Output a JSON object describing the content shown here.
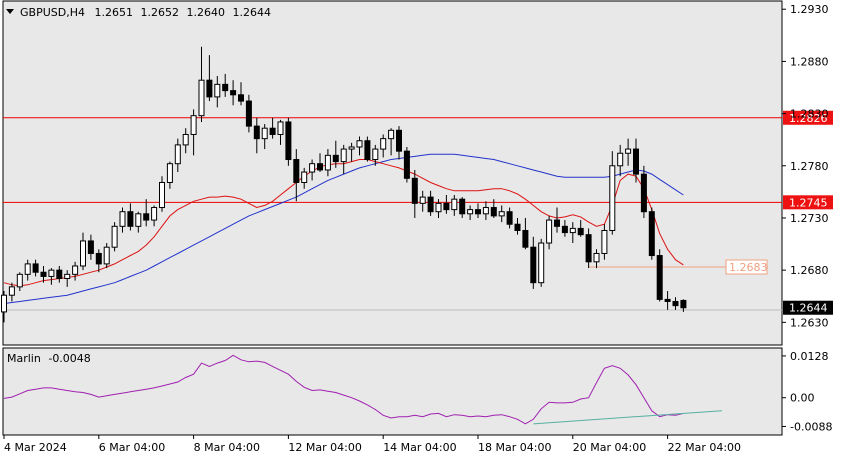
{
  "header": {
    "symbol": "GBPUSD,H4",
    "open": "1.2651",
    "high": "1.2652",
    "low": "1.2640",
    "close": "1.2644"
  },
  "indicator": {
    "name": "Marlin",
    "value": "-0.0048"
  },
  "colors": {
    "bull": "#ffffff",
    "bear": "#000000",
    "ma_fast": "#dd1111",
    "ma_slow": "#2233cc",
    "marlin": "#a020b0",
    "trend": "#55b0a0",
    "level": "#ee0000",
    "level_label": "#ee1111",
    "box_label": "#f0a080",
    "panel_bg": "#e8e8e8"
  },
  "chart_data": [
    {
      "type": "candlestick",
      "title": "GBPUSD,H4",
      "ylim": [
        1.2615,
        1.2935
      ],
      "y_ticks": [
        "1.2930",
        "1.2880",
        "1.2830",
        "1.2780",
        "1.2730",
        "1.2680",
        "1.2630"
      ],
      "x_labels": [
        "4 Mar 2024",
        "6 Mar 04:00",
        "8 Mar 04:00",
        "12 Mar 04:00",
        "14 Mar 04:00",
        "18 Mar 04:00",
        "20 Mar 04:00",
        "22 Mar 04:00"
      ],
      "candles": [
        [
          1.264,
          1.266,
          1.263,
          1.2656
        ],
        [
          1.2656,
          1.2668,
          1.265,
          1.2664
        ],
        [
          1.2664,
          1.2678,
          1.266,
          1.2676
        ],
        [
          1.2676,
          1.269,
          1.267,
          1.2686
        ],
        [
          1.2686,
          1.269,
          1.2674,
          1.2678
        ],
        [
          1.2678,
          1.2684,
          1.2668,
          1.2674
        ],
        [
          1.2674,
          1.2682,
          1.2666,
          1.268
        ],
        [
          1.268,
          1.2684,
          1.2668,
          1.2672
        ],
        [
          1.2672,
          1.268,
          1.2664,
          1.2676
        ],
        [
          1.2676,
          1.2688,
          1.267,
          1.2684
        ],
        [
          1.2684,
          1.2716,
          1.268,
          1.2708
        ],
        [
          1.2708,
          1.2714,
          1.269,
          1.2696
        ],
        [
          1.2696,
          1.27,
          1.2678,
          1.2686
        ],
        [
          1.2686,
          1.2706,
          1.2682,
          1.2702
        ],
        [
          1.2702,
          1.2726,
          1.2698,
          1.2722
        ],
        [
          1.2722,
          1.274,
          1.2716,
          1.2736
        ],
        [
          1.2736,
          1.2744,
          1.2718,
          1.2722
        ],
        [
          1.2722,
          1.2736,
          1.2716,
          1.2734
        ],
        [
          1.2734,
          1.2748,
          1.2722,
          1.2728
        ],
        [
          1.2728,
          1.2742,
          1.2722,
          1.274
        ],
        [
          1.274,
          1.277,
          1.2736,
          1.2764
        ],
        [
          1.2764,
          1.2784,
          1.2758,
          1.2782
        ],
        [
          1.2782,
          1.2806,
          1.2774,
          1.28
        ],
        [
          1.28,
          1.2816,
          1.2792,
          1.281
        ],
        [
          1.281,
          1.2834,
          1.279,
          1.2828
        ],
        [
          1.2828,
          1.2894,
          1.2822,
          1.2862
        ],
        [
          1.2862,
          1.2886,
          1.2842,
          1.2846
        ],
        [
          1.2846,
          1.2866,
          1.2836,
          1.2858
        ],
        [
          1.2858,
          1.2868,
          1.2846,
          1.2852
        ],
        [
          1.2852,
          1.2862,
          1.2838,
          1.2848
        ],
        [
          1.2848,
          1.286,
          1.2838,
          1.2842
        ],
        [
          1.2842,
          1.2848,
          1.2812,
          1.2818
        ],
        [
          1.2818,
          1.2826,
          1.2792,
          1.2806
        ],
        [
          1.2806,
          1.282,
          1.2796,
          1.2816
        ],
        [
          1.2816,
          1.2826,
          1.2806,
          1.281
        ],
        [
          1.281,
          1.2824,
          1.28,
          1.2822
        ],
        [
          1.2822,
          1.2826,
          1.278,
          1.2786
        ],
        [
          1.2786,
          1.2796,
          1.2746,
          1.2764
        ],
        [
          1.2764,
          1.2778,
          1.2758,
          1.2774
        ],
        [
          1.2774,
          1.2786,
          1.2766,
          1.2782
        ],
        [
          1.2782,
          1.2792,
          1.2774,
          1.2776
        ],
        [
          1.2776,
          1.2796,
          1.277,
          1.279
        ],
        [
          1.279,
          1.2804,
          1.2778,
          1.2784
        ],
        [
          1.2784,
          1.28,
          1.2772,
          1.2796
        ],
        [
          1.2796,
          1.2802,
          1.2784,
          1.2798
        ],
        [
          1.2798,
          1.2808,
          1.279,
          1.2804
        ],
        [
          1.2804,
          1.2808,
          1.2784,
          1.2786
        ],
        [
          1.2786,
          1.28,
          1.278,
          1.2796
        ],
        [
          1.2796,
          1.281,
          1.2788,
          1.2806
        ],
        [
          1.2806,
          1.2816,
          1.279,
          1.2814
        ],
        [
          1.2814,
          1.2818,
          1.2786,
          1.2794
        ],
        [
          1.2794,
          1.2798,
          1.2764,
          1.2768
        ],
        [
          1.2768,
          1.2776,
          1.273,
          1.2744
        ],
        [
          1.2744,
          1.2756,
          1.2736,
          1.275
        ],
        [
          1.275,
          1.2756,
          1.2732,
          1.2736
        ],
        [
          1.2736,
          1.2748,
          1.273,
          1.2744
        ],
        [
          1.2744,
          1.2752,
          1.2734,
          1.2738
        ],
        [
          1.2738,
          1.2752,
          1.2732,
          1.2748
        ],
        [
          1.2748,
          1.275,
          1.273,
          1.2734
        ],
        [
          1.2734,
          1.2742,
          1.2728,
          1.2738
        ],
        [
          1.2738,
          1.2744,
          1.273,
          1.2734
        ],
        [
          1.2734,
          1.2746,
          1.2728,
          1.274
        ],
        [
          1.274,
          1.2748,
          1.273,
          1.2732
        ],
        [
          1.2732,
          1.2742,
          1.2726,
          1.2736
        ],
        [
          1.2736,
          1.274,
          1.272,
          1.2724
        ],
        [
          1.2724,
          1.273,
          1.2714,
          1.2718
        ],
        [
          1.2718,
          1.273,
          1.27,
          1.2702
        ],
        [
          1.2702,
          1.2712,
          1.2662,
          1.2668
        ],
        [
          1.2668,
          1.271,
          1.2664,
          1.2706
        ],
        [
          1.2706,
          1.2732,
          1.27,
          1.2728
        ],
        [
          1.2728,
          1.274,
          1.2716,
          1.2722
        ],
        [
          1.2722,
          1.2728,
          1.2712,
          1.2716
        ],
        [
          1.2716,
          1.2726,
          1.2706,
          1.272
        ],
        [
          1.272,
          1.2728,
          1.2712,
          1.2714
        ],
        [
          1.2714,
          1.272,
          1.2682,
          1.2688
        ],
        [
          1.2688,
          1.27,
          1.2682,
          1.2696
        ],
        [
          1.2696,
          1.2724,
          1.269,
          1.2718
        ],
        [
          1.2718,
          1.2794,
          1.2714,
          1.278
        ],
        [
          1.278,
          1.28,
          1.277,
          1.2792
        ],
        [
          1.2792,
          1.2806,
          1.278,
          1.2796
        ],
        [
          1.2796,
          1.2806,
          1.2764,
          1.2772
        ],
        [
          1.2772,
          1.278,
          1.273,
          1.2736
        ],
        [
          1.2736,
          1.274,
          1.269,
          1.2694
        ],
        [
          1.2694,
          1.27,
          1.265,
          1.2652
        ],
        [
          1.2652,
          1.266,
          1.2642,
          1.265
        ],
        [
          1.265,
          1.2654,
          1.2642,
          1.2646
        ],
        [
          1.2651,
          1.2652,
          1.264,
          1.2644
        ]
      ],
      "ma_fast": [
        1.2668,
        1.2666,
        1.2665,
        1.2666,
        1.2668,
        1.267,
        1.2671,
        1.2672,
        1.2673,
        1.2674,
        1.2676,
        1.2678,
        1.268,
        1.2683,
        1.2686,
        1.269,
        1.2694,
        1.2698,
        1.2704,
        1.2712,
        1.2722,
        1.2732,
        1.2738,
        1.2742,
        1.2746,
        1.2748,
        1.275,
        1.275,
        1.2751,
        1.275,
        1.2748,
        1.2744,
        1.274,
        1.2742,
        1.2746,
        1.2752,
        1.2758,
        1.2764,
        1.277,
        1.2775,
        1.2779,
        1.2781,
        1.2782,
        1.2782,
        1.2784,
        1.2786,
        1.2786,
        1.2784,
        1.2782,
        1.278,
        1.2778,
        1.2775,
        1.2772,
        1.2768,
        1.2764,
        1.2761,
        1.2758,
        1.2756,
        1.2756,
        1.2756,
        1.2756,
        1.2757,
        1.2758,
        1.2758,
        1.2756,
        1.2753,
        1.2748,
        1.2742,
        1.2736,
        1.2732,
        1.273,
        1.2731,
        1.2733,
        1.2731,
        1.2726,
        1.2722,
        1.2724,
        1.2742,
        1.2766,
        1.2772,
        1.277,
        1.2758,
        1.2738,
        1.2715,
        1.27,
        1.269,
        1.2685
      ],
      "ma_slow": [
        1.2648,
        1.2649,
        1.265,
        1.2651,
        1.2652,
        1.2653,
        1.2654,
        1.2655,
        1.2656,
        1.2658,
        1.266,
        1.2662,
        1.2664,
        1.2666,
        1.2668,
        1.2671,
        1.2674,
        1.2677,
        1.268,
        1.2684,
        1.2688,
        1.2692,
        1.2696,
        1.27,
        1.2704,
        1.2708,
        1.2712,
        1.2716,
        1.272,
        1.2724,
        1.2728,
        1.2732,
        1.2735,
        1.2738,
        1.2741,
        1.2744,
        1.2747,
        1.275,
        1.2754,
        1.2758,
        1.2762,
        1.2766,
        1.2769,
        1.2772,
        1.2775,
        1.2778,
        1.278,
        1.2782,
        1.2784,
        1.2786,
        1.2787,
        1.2788,
        1.2789,
        1.279,
        1.2791,
        1.2791,
        1.2791,
        1.2791,
        1.279,
        1.2789,
        1.2788,
        1.2787,
        1.2786,
        1.2784,
        1.2782,
        1.278,
        1.2778,
        1.2776,
        1.2774,
        1.2772,
        1.277,
        1.2769,
        1.2769,
        1.2769,
        1.2769,
        1.2769,
        1.2769,
        1.277,
        1.2772,
        1.2774,
        1.2776,
        1.2775,
        1.2772,
        1.2767,
        1.2762,
        1.2757,
        1.2752
      ],
      "levels": [
        {
          "label": "1.2826",
          "value": 1.2826
        },
        {
          "label": "1.2745",
          "value": 1.2745
        }
      ],
      "bid": {
        "label": "1.2644",
        "value": 1.2644
      },
      "target": {
        "label": "1.2683",
        "value": 1.2683
      }
    },
    {
      "type": "line",
      "title": "Marlin -0.0048",
      "ylim": [
        -0.0105,
        0.014
      ],
      "y_ticks": [
        "0.0128",
        "0.00",
        "-0.0088"
      ],
      "series": [
        {
          "values": [
            -0.0002,
            0.0002,
            0.0012,
            0.0022,
            0.0026,
            0.003,
            0.003,
            0.0026,
            0.0022,
            0.0018,
            0.0016,
            0.001,
            0.0002,
            0.0006,
            0.001,
            0.0014,
            0.0018,
            0.0022,
            0.0026,
            0.003,
            0.0036,
            0.0042,
            0.0048,
            0.0062,
            0.0072,
            0.0106,
            0.0096,
            0.0106,
            0.0114,
            0.013,
            0.0116,
            0.011,
            0.0112,
            0.0108,
            0.0096,
            0.0084,
            0.0072,
            0.005,
            0.0032,
            0.0022,
            0.0024,
            0.002,
            0.0016,
            0.0008,
            0.0,
            -0.001,
            -0.0022,
            -0.0036,
            -0.0054,
            -0.0062,
            -0.0058,
            -0.0058,
            -0.0054,
            -0.0058,
            -0.005,
            -0.0048,
            -0.0058,
            -0.0052,
            -0.0054,
            -0.0058,
            -0.0056,
            -0.0058,
            -0.0054,
            -0.0052,
            -0.0058,
            -0.0066,
            -0.008,
            -0.0066,
            -0.0034,
            -0.0014,
            -0.0016,
            -0.0016,
            -0.0014,
            -0.0004,
            0.0,
            0.0046,
            0.009,
            0.0098,
            0.009,
            0.007,
            0.004,
            0.0,
            -0.004,
            -0.0058,
            -0.0052,
            -0.0054,
            -0.0048
          ]
        }
      ],
      "trendline": [
        [
          67,
          -0.008
        ],
        [
          90,
          -0.0052
        ]
      ]
    }
  ]
}
